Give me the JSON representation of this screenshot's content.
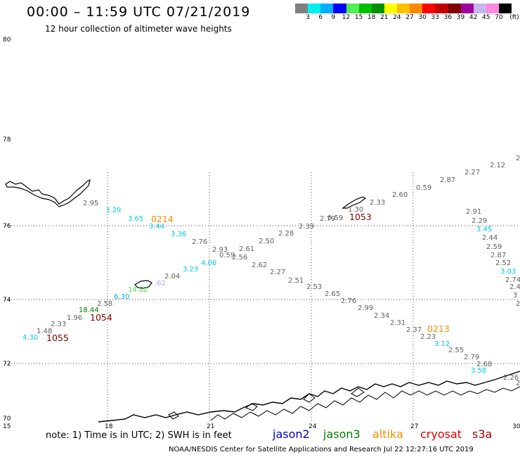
{
  "title": "00:00 – 11:59 UTC 07/21/2019",
  "subtitle": "12 hour collection of altimeter wave heights",
  "color_scale": {
    "units": "(ft)",
    "swatches": [
      "#808080",
      "#00f0f0",
      "#00b0ff",
      "#0000ff",
      "#50f050",
      "#00c000",
      "#009000",
      "#ffff00",
      "#ffc000",
      "#ff8800",
      "#ff0000",
      "#c00000",
      "#800000",
      "#a000a0",
      "#c8b4f0",
      "#ff88e0",
      "#000000"
    ],
    "tick_labels": [
      "3",
      "6",
      "9",
      "12",
      "15",
      "18",
      "21",
      "24",
      "27",
      "30",
      "33",
      "36",
      "39",
      "42",
      "45",
      "70"
    ]
  },
  "axes": {
    "latitudes": [
      "80",
      "78",
      "76",
      "74",
      "72",
      "70"
    ],
    "longitudes": [
      "15",
      "18",
      "21",
      "24",
      "27",
      "30"
    ]
  },
  "note": "note:  1) Time is in UTC;  2) SWH is in feet",
  "satellites": [
    {
      "name": "jason2",
      "color": "#0000d0"
    },
    {
      "name": "jason3",
      "color": "#008000"
    },
    {
      "name": "altika",
      "color": "#ff8c00"
    },
    {
      "name": "cryosat",
      "color": "#e00000"
    },
    {
      "name": "s3a",
      "color": "#a00000"
    }
  ],
  "credit": "NOAA/NESDIS Center for Satellite Applications and Research     Jul 22 12:27:16 UTC 2019",
  "observations": [
    {
      "v": "2.95",
      "c": "#606060"
    },
    {
      "v": "3.29",
      "c": "#00c8e6"
    },
    {
      "v": "3.65",
      "c": "#00c8e6"
    },
    {
      "v": "3.44",
      "c": "#00c8e6"
    },
    {
      "v": "3.36",
      "c": "#00c8e6"
    },
    {
      "v": "2.76",
      "c": "#606060"
    },
    {
      "v": "2.93",
      "c": "#606060"
    },
    {
      "v": "0.59",
      "c": "#606060"
    },
    {
      "v": "2.56",
      "c": "#606060"
    },
    {
      "v": "2.61",
      "c": "#606060"
    },
    {
      "v": "4.06",
      "c": "#00c8e6"
    },
    {
      "v": "3.23",
      "c": "#00c8e6"
    },
    {
      "v": "2.50",
      "c": "#606060"
    },
    {
      "v": "2.28",
      "c": "#606060"
    },
    {
      "v": "2.62",
      "c": "#606060"
    },
    {
      "v": "2.27",
      "c": "#606060"
    },
    {
      "v": "2.39",
      "c": "#606060"
    },
    {
      "v": "2.51",
      "c": "#606060"
    },
    {
      "v": "2.04",
      "c": "#606060"
    },
    {
      "v": ".62",
      "c": "#a8a0f0"
    },
    {
      "v": "14.82",
      "c": "#50e050"
    },
    {
      "v": "6.30",
      "c": "#00a8e0"
    },
    {
      "v": "2.58",
      "c": "#606060"
    },
    {
      "v": "18.44",
      "c": "#008000"
    },
    {
      "v": "1.96",
      "c": "#606060"
    },
    {
      "v": "2.33",
      "c": "#606060"
    },
    {
      "v": "1.48",
      "c": "#606060"
    },
    {
      "v": "4.30",
      "c": "#00c8e6"
    },
    {
      "v": "2.79",
      "c": "#606060"
    },
    {
      "v": "0.59",
      "c": "#606060"
    },
    {
      "v": "1.30",
      "c": "#606060"
    },
    {
      "v": "2.33",
      "c": "#606060"
    },
    {
      "v": "2.60",
      "c": "#606060"
    },
    {
      "v": "0.59",
      "c": "#606060"
    },
    {
      "v": "2.87",
      "c": "#606060"
    },
    {
      "v": "2.27",
      "c": "#606060"
    },
    {
      "v": "2.12",
      "c": "#606060"
    },
    {
      "v": "2",
      "c": "#606060"
    },
    {
      "v": "2.53",
      "c": "#606060"
    },
    {
      "v": "2.65",
      "c": "#606060"
    },
    {
      "v": "2.76",
      "c": "#606060"
    },
    {
      "v": "2.99",
      "c": "#606060"
    },
    {
      "v": "2.34",
      "c": "#606060"
    },
    {
      "v": "2.31",
      "c": "#606060"
    },
    {
      "v": "2.37",
      "c": "#606060"
    },
    {
      "v": "2.23",
      "c": "#606060"
    },
    {
      "v": "3.12",
      "c": "#00c8e6"
    },
    {
      "v": "2.55",
      "c": "#606060"
    },
    {
      "v": "2.79",
      "c": "#606060"
    },
    {
      "v": "2.68",
      "c": "#606060"
    },
    {
      "v": "3.58",
      "c": "#00c8e6"
    },
    {
      "v": "2.26",
      "c": "#606060"
    },
    {
      "v": "2.91",
      "c": "#606060"
    },
    {
      "v": "2.29",
      "c": "#606060"
    },
    {
      "v": "3.45",
      "c": "#00c8e6"
    },
    {
      "v": "2.44",
      "c": "#606060"
    },
    {
      "v": "2.59",
      "c": "#606060"
    },
    {
      "v": "2.87",
      "c": "#606060"
    },
    {
      "v": "2.52",
      "c": "#606060"
    },
    {
      "v": "3.03",
      "c": "#00c8e6"
    },
    {
      "v": "2.74",
      "c": "#606060"
    },
    {
      "v": "2.4",
      "c": "#606060"
    },
    {
      "v": "3",
      "c": "#606060"
    },
    {
      "v": "2",
      "c": "#606060"
    },
    {
      "v": "2",
      "c": "#606060"
    }
  ],
  "time_stamps": [
    {
      "t": "0214",
      "c": "#ff8c00"
    },
    {
      "t": "1054",
      "c": "#800000"
    },
    {
      "t": "1055",
      "c": "#800000"
    },
    {
      "t": "1053",
      "c": "#800000"
    },
    {
      "t": "0213",
      "c": "#ff8c00"
    }
  ]
}
